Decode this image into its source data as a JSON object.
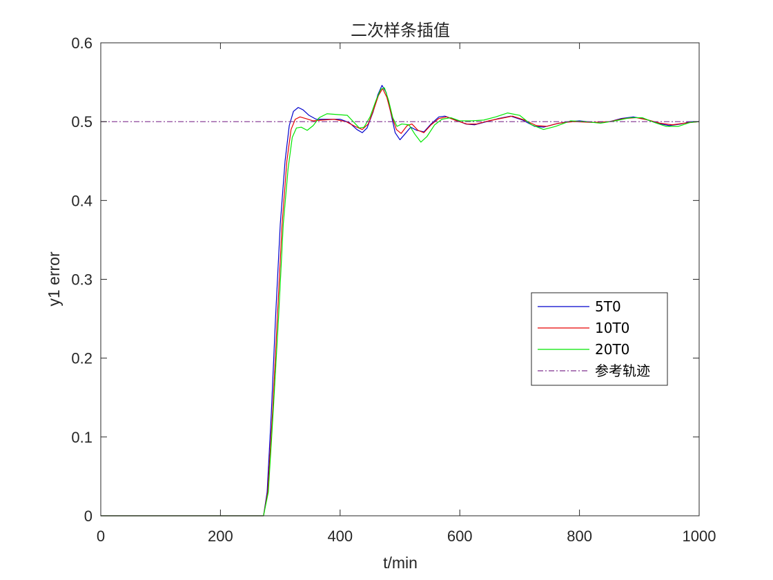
{
  "chart_data": {
    "type": "line",
    "title": "二次样条插值",
    "xlabel": "t/min",
    "ylabel": "y1 error",
    "xlim": [
      0,
      1000
    ],
    "ylim": [
      0,
      0.6
    ],
    "xticks": [
      0,
      200,
      400,
      600,
      800,
      1000
    ],
    "yticks": [
      0,
      0.1,
      0.2,
      0.3,
      0.4,
      0.5,
      0.6
    ],
    "xtick_labels": [
      "0",
      "200",
      "400",
      "600",
      "800",
      "1000"
    ],
    "ytick_labels": [
      "0",
      "0.1",
      "0.2",
      "0.3",
      "0.4",
      "0.5",
      "0.6"
    ],
    "grid": false,
    "legend_position": "right-center",
    "series": [
      {
        "name": "5T0",
        "color": "#0000cc",
        "style": "solid",
        "points": [
          [
            0,
            0
          ],
          [
            272,
            0
          ],
          [
            278,
            0.03
          ],
          [
            285,
            0.13
          ],
          [
            292,
            0.25
          ],
          [
            300,
            0.37
          ],
          [
            308,
            0.45
          ],
          [
            315,
            0.495
          ],
          [
            322,
            0.513
          ],
          [
            330,
            0.518
          ],
          [
            338,
            0.515
          ],
          [
            348,
            0.508
          ],
          [
            360,
            0.503
          ],
          [
            380,
            0.503
          ],
          [
            400,
            0.503
          ],
          [
            415,
            0.499
          ],
          [
            428,
            0.49
          ],
          [
            437,
            0.486
          ],
          [
            445,
            0.492
          ],
          [
            455,
            0.512
          ],
          [
            463,
            0.534
          ],
          [
            470,
            0.546
          ],
          [
            477,
            0.537
          ],
          [
            485,
            0.51
          ],
          [
            492,
            0.486
          ],
          [
            500,
            0.477
          ],
          [
            508,
            0.484
          ],
          [
            518,
            0.493
          ],
          [
            528,
            0.489
          ],
          [
            540,
            0.487
          ],
          [
            552,
            0.497
          ],
          [
            565,
            0.506
          ],
          [
            575,
            0.507
          ],
          [
            590,
            0.503
          ],
          [
            610,
            0.497
          ],
          [
            625,
            0.496
          ],
          [
            645,
            0.5
          ],
          [
            665,
            0.504
          ],
          [
            685,
            0.507
          ],
          [
            705,
            0.502
          ],
          [
            725,
            0.494
          ],
          [
            740,
            0.493
          ],
          [
            760,
            0.497
          ],
          [
            780,
            0.5
          ],
          [
            800,
            0.501
          ],
          [
            825,
            0.499
          ],
          [
            850,
            0.5
          ],
          [
            870,
            0.504
          ],
          [
            890,
            0.506
          ],
          [
            910,
            0.503
          ],
          [
            930,
            0.498
          ],
          [
            950,
            0.495
          ],
          [
            970,
            0.497
          ],
          [
            985,
            0.5
          ],
          [
            1000,
            0.5
          ]
        ]
      },
      {
        "name": "10T0",
        "color": "#e60000",
        "style": "solid",
        "points": [
          [
            0,
            0
          ],
          [
            272,
            0
          ],
          [
            279,
            0.03
          ],
          [
            287,
            0.13
          ],
          [
            295,
            0.25
          ],
          [
            303,
            0.37
          ],
          [
            311,
            0.45
          ],
          [
            318,
            0.49
          ],
          [
            325,
            0.503
          ],
          [
            333,
            0.506
          ],
          [
            342,
            0.504
          ],
          [
            355,
            0.501
          ],
          [
            370,
            0.502
          ],
          [
            390,
            0.503
          ],
          [
            410,
            0.5
          ],
          [
            425,
            0.494
          ],
          [
            437,
            0.49
          ],
          [
            447,
            0.497
          ],
          [
            456,
            0.515
          ],
          [
            464,
            0.533
          ],
          [
            471,
            0.542
          ],
          [
            478,
            0.531
          ],
          [
            486,
            0.508
          ],
          [
            494,
            0.49
          ],
          [
            502,
            0.485
          ],
          [
            512,
            0.495
          ],
          [
            520,
            0.497
          ],
          [
            530,
            0.489
          ],
          [
            540,
            0.486
          ],
          [
            552,
            0.496
          ],
          [
            565,
            0.504
          ],
          [
            578,
            0.506
          ],
          [
            595,
            0.501
          ],
          [
            612,
            0.497
          ],
          [
            628,
            0.497
          ],
          [
            648,
            0.501
          ],
          [
            668,
            0.504
          ],
          [
            688,
            0.507
          ],
          [
            708,
            0.502
          ],
          [
            728,
            0.495
          ],
          [
            745,
            0.494
          ],
          [
            765,
            0.498
          ],
          [
            790,
            0.5
          ],
          [
            820,
            0.499
          ],
          [
            850,
            0.5
          ],
          [
            875,
            0.504
          ],
          [
            895,
            0.505
          ],
          [
            915,
            0.502
          ],
          [
            935,
            0.498
          ],
          [
            955,
            0.496
          ],
          [
            975,
            0.498
          ],
          [
            1000,
            0.5
          ]
        ]
      },
      {
        "name": "20T0",
        "color": "#00e600",
        "style": "solid",
        "points": [
          [
            0,
            0
          ],
          [
            272,
            0
          ],
          [
            280,
            0.03
          ],
          [
            288,
            0.13
          ],
          [
            297,
            0.25
          ],
          [
            305,
            0.37
          ],
          [
            313,
            0.44
          ],
          [
            320,
            0.48
          ],
          [
            327,
            0.492
          ],
          [
            335,
            0.493
          ],
          [
            345,
            0.489
          ],
          [
            355,
            0.495
          ],
          [
            365,
            0.505
          ],
          [
            378,
            0.51
          ],
          [
            395,
            0.509
          ],
          [
            412,
            0.508
          ],
          [
            422,
            0.5
          ],
          [
            432,
            0.492
          ],
          [
            440,
            0.493
          ],
          [
            450,
            0.506
          ],
          [
            460,
            0.527
          ],
          [
            468,
            0.541
          ],
          [
            474,
            0.543
          ],
          [
            481,
            0.527
          ],
          [
            488,
            0.505
          ],
          [
            495,
            0.494
          ],
          [
            503,
            0.497
          ],
          [
            515,
            0.496
          ],
          [
            525,
            0.484
          ],
          [
            535,
            0.474
          ],
          [
            545,
            0.481
          ],
          [
            558,
            0.496
          ],
          [
            570,
            0.503
          ],
          [
            585,
            0.505
          ],
          [
            600,
            0.501
          ],
          [
            620,
            0.501
          ],
          [
            640,
            0.502
          ],
          [
            660,
            0.506
          ],
          [
            680,
            0.511
          ],
          [
            700,
            0.508
          ],
          [
            720,
            0.496
          ],
          [
            740,
            0.49
          ],
          [
            760,
            0.494
          ],
          [
            785,
            0.501
          ],
          [
            810,
            0.5
          ],
          [
            835,
            0.498
          ],
          [
            860,
            0.501
          ],
          [
            885,
            0.505
          ],
          [
            905,
            0.505
          ],
          [
            925,
            0.499
          ],
          [
            945,
            0.494
          ],
          [
            965,
            0.494
          ],
          [
            985,
            0.499
          ],
          [
            1000,
            0.5
          ]
        ]
      },
      {
        "name": "参考轨迹",
        "color": "#7e2f8e",
        "style": "dashdot",
        "points": [
          [
            0,
            0.5
          ],
          [
            1000,
            0.5
          ]
        ]
      }
    ]
  }
}
